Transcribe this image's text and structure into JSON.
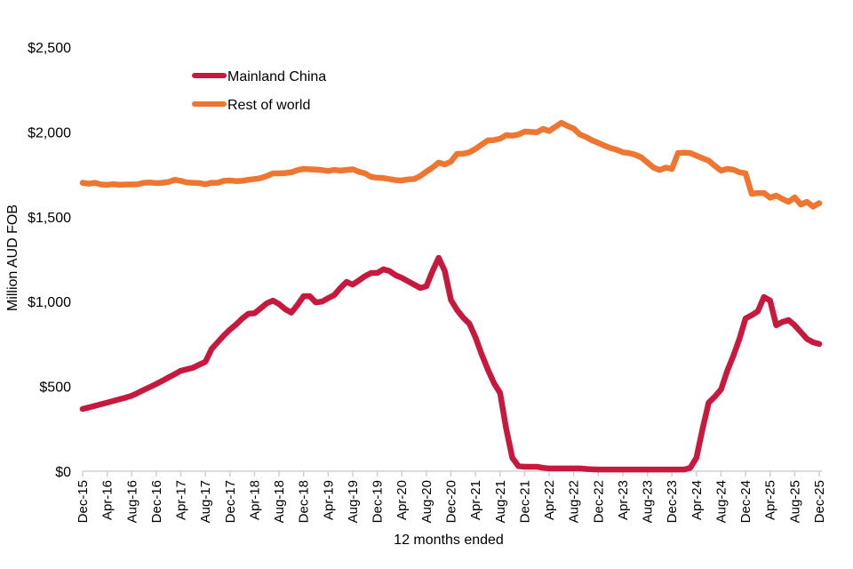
{
  "chart_data": {
    "type": "line",
    "title": "",
    "xlabel": "12 months ended",
    "ylabel": "Million AUD FOB",
    "ylim": [
      0,
      2500
    ],
    "y_ticks": [
      0,
      500,
      1000,
      1500,
      2000,
      2500
    ],
    "y_tick_labels": [
      "$0",
      "$500",
      "$1,000",
      "$1,500",
      "$2,000",
      "$2,500"
    ],
    "x_tick_labels": [
      "Dec-15",
      "Apr-16",
      "Aug-16",
      "Dec-16",
      "Apr-17",
      "Aug-17",
      "Dec-17",
      "Apr-18",
      "Aug-18",
      "Dec-18",
      "Apr-19",
      "Aug-19",
      "Dec-19",
      "Apr-20",
      "Aug-20",
      "Dec-20",
      "Apr-21",
      "Aug-21",
      "Dec-21",
      "Apr-22",
      "Aug-22",
      "Dec-22",
      "Apr-23",
      "Aug-23",
      "Dec-23",
      "Apr-24",
      "Aug-24",
      "Dec-24",
      "Apr-25",
      "Aug-25",
      "Dec-25"
    ],
    "categories": [
      "Dec-15",
      "Jan-16",
      "Feb-16",
      "Mar-16",
      "Apr-16",
      "May-16",
      "Jun-16",
      "Jul-16",
      "Aug-16",
      "Sep-16",
      "Oct-16",
      "Nov-16",
      "Dec-16",
      "Jan-17",
      "Feb-17",
      "Mar-17",
      "Apr-17",
      "May-17",
      "Jun-17",
      "Jul-17",
      "Aug-17",
      "Sep-17",
      "Oct-17",
      "Nov-17",
      "Dec-17",
      "Jan-18",
      "Feb-18",
      "Mar-18",
      "Apr-18",
      "May-18",
      "Jun-18",
      "Jul-18",
      "Aug-18",
      "Sep-18",
      "Oct-18",
      "Nov-18",
      "Dec-18",
      "Jan-19",
      "Feb-19",
      "Mar-19",
      "Apr-19",
      "May-19",
      "Jun-19",
      "Jul-19",
      "Aug-19",
      "Sep-19",
      "Oct-19",
      "Nov-19",
      "Dec-19",
      "Jan-20",
      "Feb-20",
      "Mar-20",
      "Apr-20",
      "May-20",
      "Jun-20",
      "Jul-20",
      "Aug-20",
      "Sep-20",
      "Oct-20",
      "Nov-20",
      "Dec-20",
      "Jan-21",
      "Feb-21",
      "Mar-21",
      "Apr-21",
      "May-21",
      "Jun-21",
      "Jul-21",
      "Aug-21",
      "Sep-21",
      "Oct-21",
      "Nov-21",
      "Dec-21",
      "Jan-22",
      "Feb-22",
      "Mar-22",
      "Apr-22",
      "May-22",
      "Jun-22",
      "Jul-22",
      "Aug-22",
      "Sep-22",
      "Oct-22",
      "Nov-22",
      "Dec-22",
      "Jan-23",
      "Feb-23",
      "Mar-23",
      "Apr-23",
      "May-23",
      "Jun-23",
      "Jul-23",
      "Aug-23",
      "Sep-23",
      "Oct-23",
      "Nov-23",
      "Dec-23",
      "Jan-24",
      "Feb-24",
      "Mar-24",
      "Apr-24",
      "May-24",
      "Jun-24",
      "Jul-24",
      "Aug-24",
      "Sep-24",
      "Oct-24",
      "Nov-24",
      "Dec-24",
      "Jan-25",
      "Feb-25",
      "Mar-25",
      "Apr-25",
      "May-25",
      "Jun-25",
      "Jul-25",
      "Aug-25",
      "Sep-25",
      "Oct-25",
      "Nov-25",
      "Dec-25"
    ],
    "series": [
      {
        "name": "Mainland China",
        "color": "#C8183E",
        "values": [
          367,
          376,
          385,
          395,
          404,
          414,
          424,
          434,
          445,
          462,
          480,
          497,
          514,
          533,
          553,
          572,
          592,
          601,
          610,
          628,
          645,
          720,
          760,
          800,
          835,
          865,
          900,
          928,
          931,
          960,
          990,
          1006,
          985,
          955,
          935,
          980,
          1032,
          1032,
          995,
          1000,
          1020,
          1038,
          1080,
          1116,
          1100,
          1125,
          1150,
          1169,
          1169,
          1190,
          1180,
          1155,
          1140,
          1120,
          1100,
          1080,
          1090,
          1180,
          1258,
          1180,
          1010,
          950,
          905,
          870,
          790,
          690,
          600,
          520,
          461,
          250,
          79,
          30,
          26,
          26,
          26,
          20,
          16,
          16,
          16,
          16,
          16,
          16,
          13,
          11,
          10,
          10,
          10,
          10,
          10,
          10,
          10,
          10,
          10,
          10,
          10,
          10,
          10,
          10,
          10,
          20,
          79,
          250,
          404,
          440,
          482,
          590,
          680,
          780,
          901,
          920,
          943,
          1027,
          1006,
          860,
          880,
          891,
          860,
          820,
          780,
          760,
          750
        ]
      },
      {
        "name": "Rest of world",
        "color": "#EE7630",
        "values": [
          1700,
          1695,
          1700,
          1690,
          1688,
          1692,
          1688,
          1690,
          1690,
          1692,
          1700,
          1702,
          1698,
          1700,
          1705,
          1718,
          1712,
          1702,
          1700,
          1698,
          1692,
          1700,
          1700,
          1712,
          1714,
          1710,
          1712,
          1718,
          1722,
          1728,
          1740,
          1756,
          1756,
          1758,
          1762,
          1775,
          1782,
          1780,
          1778,
          1775,
          1770,
          1776,
          1772,
          1776,
          1780,
          1765,
          1756,
          1735,
          1730,
          1728,
          1722,
          1716,
          1714,
          1720,
          1722,
          1740,
          1766,
          1790,
          1819,
          1808,
          1825,
          1871,
          1871,
          1880,
          1900,
          1925,
          1950,
          1952,
          1960,
          1981,
          1978,
          1985,
          2002,
          2000,
          1998,
          2018,
          2005,
          2030,
          2054,
          2035,
          2020,
          1985,
          1970,
          1950,
          1935,
          1920,
          1905,
          1895,
          1880,
          1876,
          1866,
          1850,
          1820,
          1790,
          1775,
          1790,
          1782,
          1876,
          1878,
          1876,
          1860,
          1845,
          1830,
          1800,
          1772,
          1782,
          1778,
          1762,
          1756,
          1635,
          1640,
          1640,
          1612,
          1625,
          1605,
          1588,
          1614,
          1572,
          1588,
          1560,
          1580
        ]
      }
    ],
    "grid": false,
    "legend_position": "top-left"
  }
}
